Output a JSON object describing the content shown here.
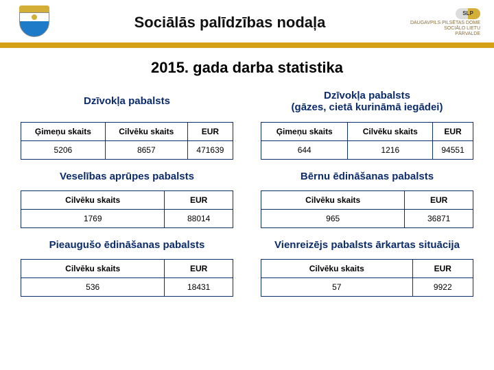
{
  "header": {
    "title": "Sociālās palīdzības nodaļa",
    "badge": "SLP",
    "org_line1": "DAUGAVPILS PILSĒTAS DOME",
    "org_line2": "SOCIĀLO LIETU",
    "org_line3": "PĀRVALDE"
  },
  "subtitle": "2015. gada darba statistika",
  "left": {
    "sec1": {
      "title": "Dzīvokļa pabalsts",
      "h1": "Ģimeņu skaits",
      "h2": "Cilvēku skaits",
      "h3": "EUR",
      "v1": "5206",
      "v2": "8657",
      "v3": "471639"
    },
    "sec2": {
      "title": "Veselības aprūpes pabalsts",
      "h1": "Cilvēku  skaits",
      "h2": "EUR",
      "v1": "1769",
      "v2": "88014"
    },
    "sec3": {
      "title": "Pieaugušo ēdināšanas pabalsts",
      "h1": "Cilvēku  skaits",
      "h2": "EUR",
      "v1": "536",
      "v2": "18431"
    }
  },
  "right": {
    "sec1": {
      "title": "Dzīvokļa pabalsts\n(gāzes, cietā kurināmā iegādei)",
      "h1": "Ģimeņu skaits",
      "h2": "Cilvēku skaits",
      "h3": "EUR",
      "v1": "644",
      "v2": "1216",
      "v3": "94551"
    },
    "sec2": {
      "title": "Bērnu ēdināšanas pabalsts",
      "h1": "Cilvēku  skaits",
      "h2": "EUR",
      "v1": "965",
      "v2": "36871"
    },
    "sec3": {
      "title": "Vienreizējs pabalsts ārkartas situācija",
      "h1": "Cilvēku  skaits",
      "h2": "EUR",
      "v1": "57",
      "v2": "9922"
    }
  },
  "style": {
    "title_color": "#0b2b6b",
    "border_color": "#0b2b6b",
    "gold_bar": "#d4a017",
    "font_title": 22,
    "font_section": 15,
    "font_table": 12
  }
}
